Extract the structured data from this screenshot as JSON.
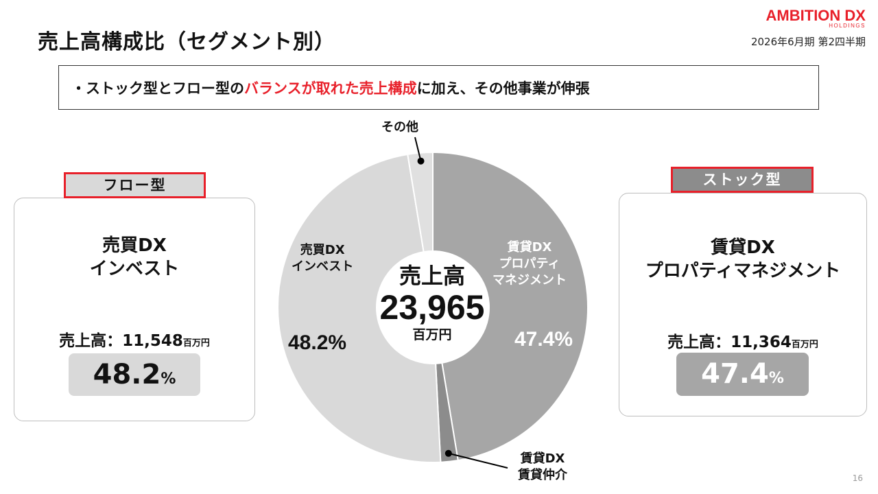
{
  "header": {
    "title": "売上高構成比（セグメント別）",
    "period": "2026年6月期 第2四半期",
    "logo_text": "AMBITION DX",
    "logo_sub": "HOLDINGS"
  },
  "message": {
    "prefix": "・ストック型とフロー型の",
    "highlight": "バランスが取れた売上構成",
    "suffix": "に加え、その他事業が伸張"
  },
  "left_card": {
    "tag": "フロー型",
    "name_line1": "売買DX",
    "name_line2": "インベスト",
    "sales_label": "売上高：11,548",
    "sales_unit": "百万円",
    "pct_value": "48.2",
    "pct_sym": "%"
  },
  "right_card": {
    "tag": "ストック型",
    "name_line1": "賃貸DX",
    "name_line2": "プロパティマネジメント",
    "sales_label": "売上高：11,364",
    "sales_unit": "百万円",
    "pct_value": "47.4",
    "pct_sym": "%"
  },
  "center": {
    "title": "売上高",
    "value": "23,965",
    "unit": "百万円"
  },
  "page_number": "16",
  "colors": {
    "accent_red": "#e8202a",
    "property_mgmt": "#a6a6a6",
    "invest": "#d9d9d9",
    "brokerage": "#8c8c8c",
    "other": "#e0e0e0"
  },
  "chart_data": {
    "type": "pie",
    "total": 23965,
    "unit": "百万円",
    "slices": [
      {
        "label_lines": [
          "賃貸DX",
          "プロパティ",
          "マネジメント"
        ],
        "value": 47.4,
        "pct_label": "47.4%",
        "color": "#a6a6a6"
      },
      {
        "label_lines": [
          "賃貸DX",
          "賃貸仲介"
        ],
        "value": 1.8,
        "pct_label": "",
        "color": "#8c8c8c"
      },
      {
        "label_lines": [
          "売買DX",
          "インベスト"
        ],
        "value": 48.2,
        "pct_label": "48.2%",
        "color": "#d9d9d9"
      },
      {
        "label_lines": [
          "その他"
        ],
        "value": 2.6,
        "pct_label": "",
        "color": "#e0e0e0"
      }
    ]
  }
}
